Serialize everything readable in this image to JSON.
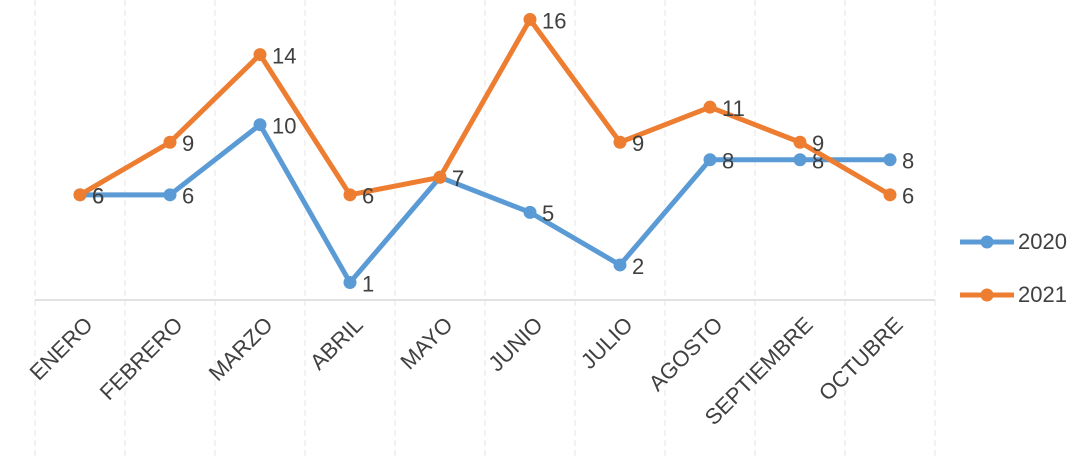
{
  "chart_data": {
    "type": "line",
    "categories": [
      "ENERO",
      "FEBRERO",
      "MARZO",
      "ABRIL",
      "MAYO",
      "JUNIO",
      "JULIO",
      "AGOSTO",
      "SEPTIEMBRE",
      "OCTUBRE"
    ],
    "series": [
      {
        "name": "2020",
        "color": "#5b9bd5",
        "values": [
          6,
          6,
          10,
          1,
          7,
          5,
          2,
          8,
          8,
          8
        ]
      },
      {
        "name": "2021",
        "color": "#ed7d31",
        "values": [
          6,
          9,
          14,
          6,
          7,
          16,
          9,
          11,
          9,
          6
        ]
      }
    ],
    "ylim": [
      0,
      17
    ],
    "grid": true,
    "legend": "right"
  }
}
